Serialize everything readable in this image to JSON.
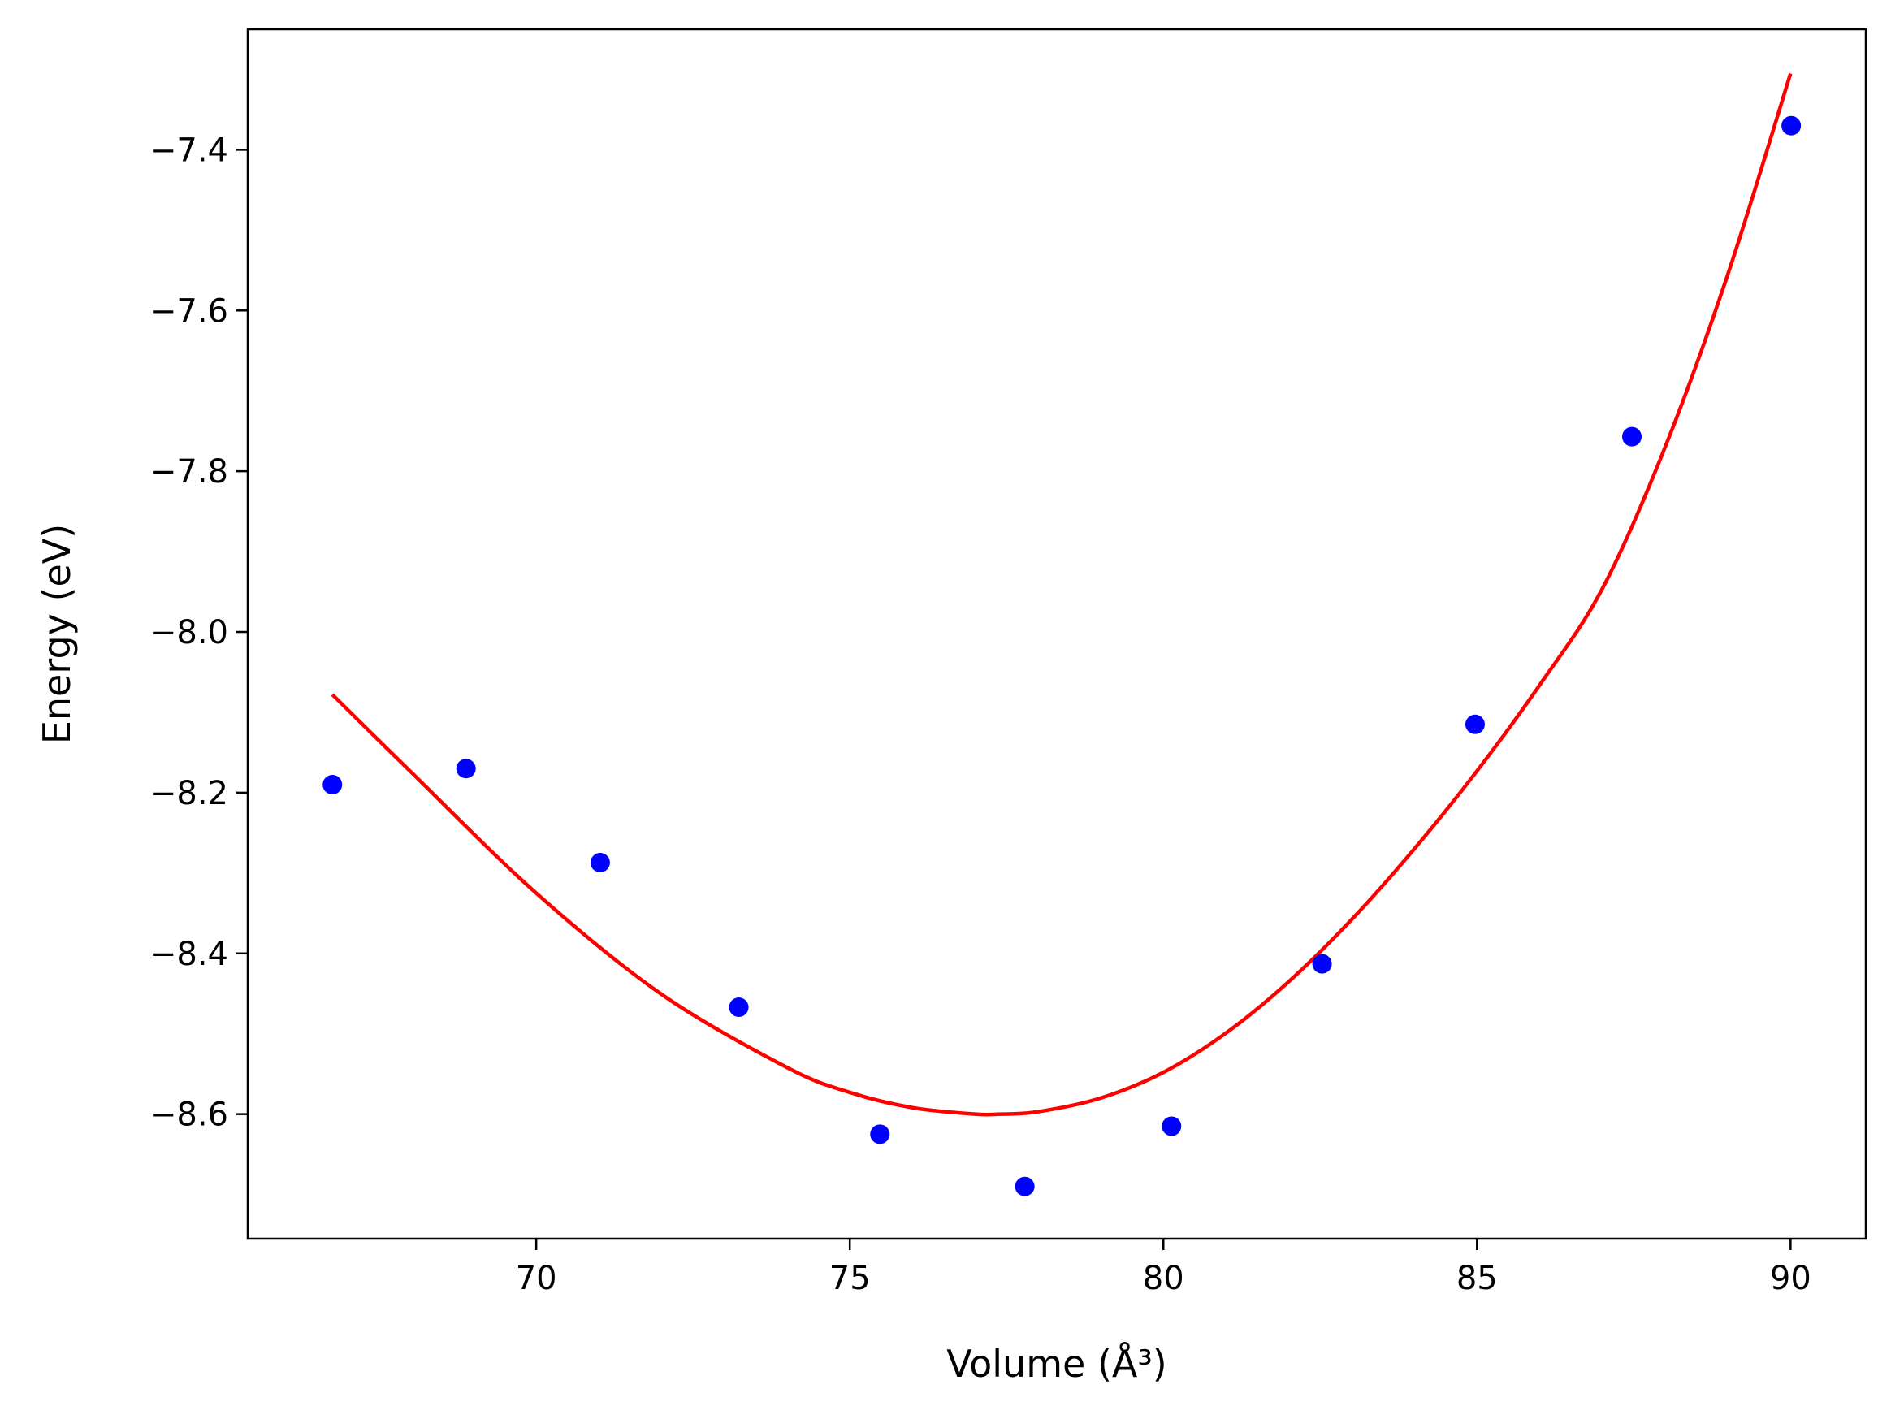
{
  "chart_data": {
    "type": "scatter",
    "xlabel": "Volume (Å³)",
    "ylabel": "Energy (eV)",
    "xlim": [
      65.4,
      91.2
    ],
    "ylim": [
      -8.755,
      -7.25
    ],
    "xticks": [
      70,
      75,
      80,
      85,
      90
    ],
    "yticks": [
      -7.4,
      -7.6,
      -7.8,
      -8.0,
      -8.2,
      -8.4,
      -8.6
    ],
    "xtick_labels": [
      "70",
      "75",
      "80",
      "85",
      "90"
    ],
    "ytick_labels": [
      "−7.4",
      "−7.6",
      "−7.8",
      "−8.0",
      "−8.2",
      "−8.4",
      "−8.6"
    ],
    "grid": false,
    "series": [
      {
        "kind": "points",
        "color": "#0000ff",
        "x": [
          66.75,
          68.88,
          71.02,
          73.23,
          75.48,
          77.79,
          80.13,
          82.53,
          84.97,
          87.47,
          90.01
        ],
        "y": [
          -8.19,
          -8.17,
          -8.287,
          -8.467,
          -8.625,
          -8.69,
          -8.615,
          -8.413,
          -8.115,
          -7.757,
          -7.37
        ]
      },
      {
        "kind": "fit-curve",
        "color": "#ff0000",
        "x": [
          66.75,
          68.0,
          70.0,
          72.0,
          74.0,
          75.0,
          76.0,
          77.0,
          77.4,
          78.0,
          79.0,
          80.0,
          81.0,
          82.0,
          83.0,
          84.0,
          85.0,
          86.0,
          87.0,
          88.0,
          89.0,
          90.0
        ],
        "y": [
          -8.078,
          -8.174,
          -8.325,
          -8.451,
          -8.542,
          -8.573,
          -8.592,
          -8.6,
          -8.6,
          -8.597,
          -8.58,
          -8.548,
          -8.499,
          -8.435,
          -8.358,
          -8.27,
          -8.173,
          -8.066,
          -7.946,
          -7.77,
          -7.555,
          -7.305
        ]
      }
    ]
  }
}
